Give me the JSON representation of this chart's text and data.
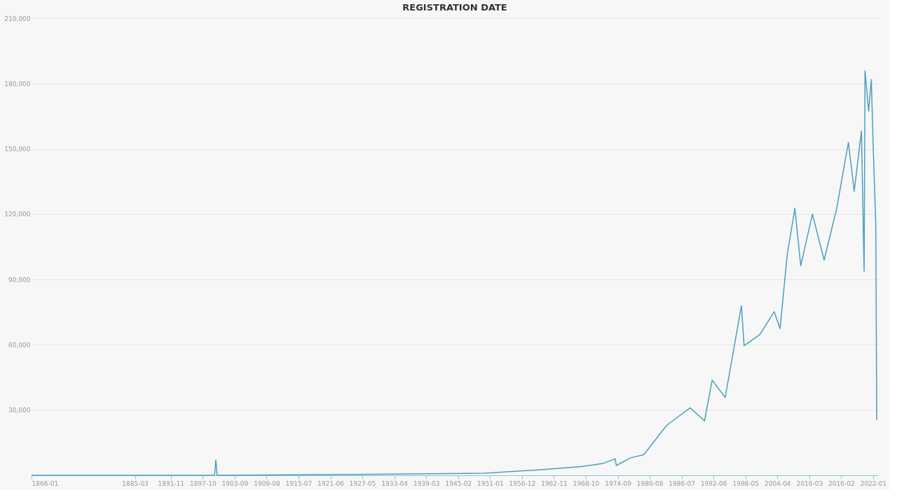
{
  "chart_data": {
    "type": "line",
    "title": "REGISTRATION DATE",
    "x": [
      "1866-01",
      "1885-03",
      "1899-12",
      "1900-03",
      "1900-06",
      "1930-01",
      "1950-01",
      "1960-01",
      "1968-01",
      "1972-01",
      "1974-03",
      "1974-06",
      "1977-01",
      "1979-07",
      "1983-10",
      "1988-02",
      "1990-10",
      "1992-03",
      "1994-08",
      "1997-08",
      "1998-02",
      "2001-01",
      "2003-09",
      "2004-10",
      "2006-02",
      "2007-07",
      "2008-08",
      "2010-10",
      "2012-12",
      "2015-04",
      "2017-06",
      "2018-07",
      "2019-11",
      "2020-05",
      "2020-07",
      "2021-03",
      "2021-09",
      "2022-01",
      "2022-07",
      "2022-09"
    ],
    "series": [
      {
        "color": "#4a9fbf",
        "values": [
          0,
          0,
          0,
          7000,
          0,
          500,
          1000,
          2500,
          4000,
          5500,
          7600,
          4500,
          8000,
          9500,
          23000,
          31000,
          25000,
          43700,
          35800,
          77900,
          59500,
          64700,
          75200,
          67400,
          101600,
          122600,
          96300,
          120000,
          98900,
          122600,
          152900,
          130500,
          158200,
          93700,
          185800,
          167400,
          181800,
          151600,
          114700,
          25300
        ]
      }
    ],
    "xlim": [
      "1866-01",
      "2022-12"
    ],
    "xticks": [
      "1866-01",
      "1885-03",
      "1891-11",
      "1897-10",
      "1903-09",
      "1909-08",
      "1915-07",
      "1921-06",
      "1927-05",
      "1933-04",
      "1939-03",
      "1945-02",
      "1951-01",
      "1956-12",
      "1962-11",
      "1968-10",
      "1974-09",
      "1980-08",
      "1986-07",
      "1992-06",
      "1998-05",
      "2004-04",
      "2010-03",
      "2016-02",
      "2022-01"
    ],
    "ylim": [
      0,
      210000
    ],
    "yticks": [
      {
        "value": 30000,
        "label": "30,000"
      },
      {
        "value": 60000,
        "label": "60,000"
      },
      {
        "value": 90000,
        "label": "90,000"
      },
      {
        "value": 120000,
        "label": "120,000"
      },
      {
        "value": 150000,
        "label": "150,000"
      },
      {
        "value": 180000,
        "label": "180,000"
      },
      {
        "value": 210000,
        "label": "210,000"
      }
    ],
    "grid": "y",
    "marker": "none",
    "line_style": "solid"
  }
}
